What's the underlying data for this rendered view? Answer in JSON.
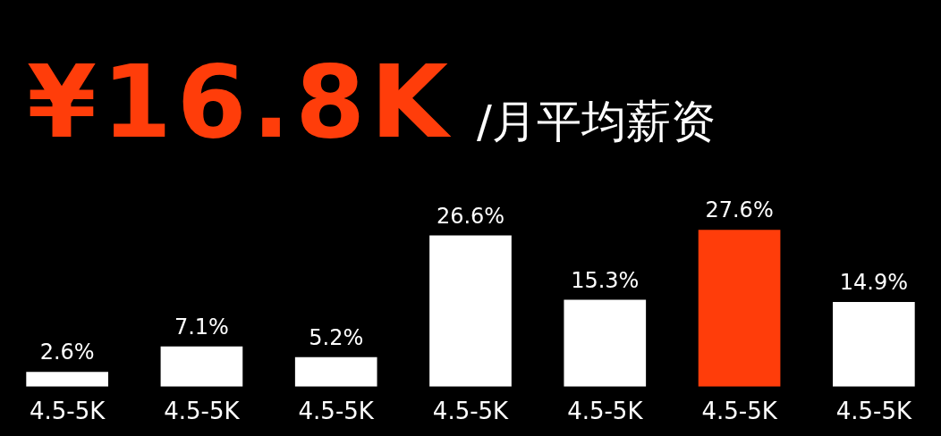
{
  "chart_data": {
    "type": "bar",
    "title": "¥16.8K",
    "subtitle": "/月平均薪资",
    "categories": [
      "4.5-5K",
      "4.5-5K",
      "4.5-5K",
      "4.5-5K",
      "4.5-5K",
      "4.5-5K",
      "4.5-5K"
    ],
    "values": [
      2.6,
      7.1,
      5.2,
      26.6,
      15.3,
      27.6,
      14.9
    ],
    "colors": [
      "#ffffff",
      "#ffffff",
      "#ffffff",
      "#ffffff",
      "#ffffff",
      "#ff3d0a",
      "#ffffff"
    ],
    "value_labels": [
      "2.6%",
      "7.1%",
      "5.2%",
      "26.6%",
      "15.3%",
      "27.6%",
      "14.9%"
    ]
  }
}
